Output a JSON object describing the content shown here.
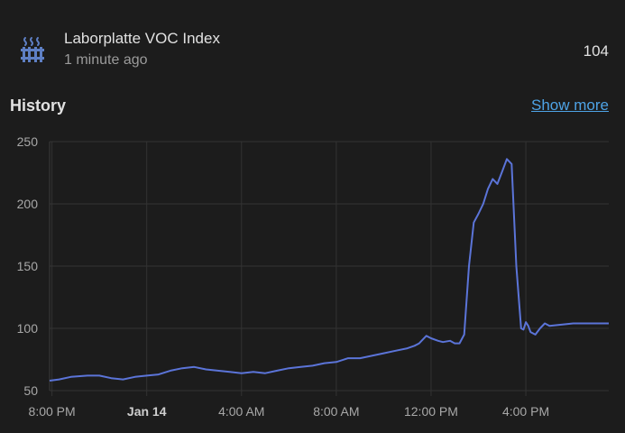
{
  "entity": {
    "name": "Laborplatte VOC Index",
    "last_changed": "1 minute ago",
    "state": "104",
    "icon": "radiator-icon"
  },
  "history": {
    "title": "History",
    "show_more_label": "Show more"
  },
  "colors": {
    "background": "#1c1c1c",
    "line": "#5b74d8",
    "accent_link": "#4ea3e6"
  },
  "chart_data": {
    "type": "line",
    "x_tick_labels": [
      "8:00 PM",
      "Jan 14",
      "4:00 AM",
      "8:00 AM",
      "12:00 PM",
      "4:00 PM"
    ],
    "x_tick_bold": [
      false,
      true,
      false,
      false,
      false,
      false
    ],
    "x_tick_hours": [
      0,
      4,
      8,
      12,
      16,
      20
    ],
    "x_range_hours": [
      -0.1,
      23.5
    ],
    "ylim": [
      50,
      250
    ],
    "y_ticks": [
      50,
      100,
      150,
      200,
      250
    ],
    "grid": true,
    "series": [
      {
        "x": [
          -0.1,
          0.3,
          0.8,
          1.5,
          2.0,
          2.5,
          3.0,
          3.5,
          4.0,
          4.5,
          5.0,
          5.5,
          6.0,
          6.5,
          7.0,
          7.5,
          8.0,
          8.5,
          9.0,
          9.5,
          10.0,
          10.5,
          11.0,
          11.5,
          12.0,
          12.5,
          13.0,
          13.5,
          14.0,
          14.5,
          15.0,
          15.3,
          15.5,
          15.8,
          16.0,
          16.3,
          16.5,
          16.8,
          17.0,
          17.2,
          17.4,
          17.6,
          17.8,
          18.0,
          18.2,
          18.4,
          18.6,
          18.8,
          19.0,
          19.2,
          19.4,
          19.6,
          19.8,
          19.9,
          20.0,
          20.1,
          20.2,
          20.4,
          20.6,
          20.8,
          21.0,
          21.5,
          22.0,
          22.5,
          23.0,
          23.5
        ],
        "y": [
          58,
          59,
          61,
          62,
          62,
          60,
          59,
          61,
          62,
          63,
          66,
          68,
          69,
          67,
          66,
          65,
          64,
          65,
          64,
          66,
          68,
          69,
          70,
          72,
          73,
          76,
          76,
          78,
          80,
          82,
          84,
          86,
          88,
          94,
          92,
          90,
          89,
          90,
          88,
          88,
          95,
          150,
          185,
          192,
          200,
          212,
          220,
          216,
          226,
          236,
          232,
          150,
          100,
          99,
          105,
          102,
          97,
          95,
          100,
          104,
          102,
          103,
          104,
          104,
          104,
          104
        ]
      }
    ]
  }
}
